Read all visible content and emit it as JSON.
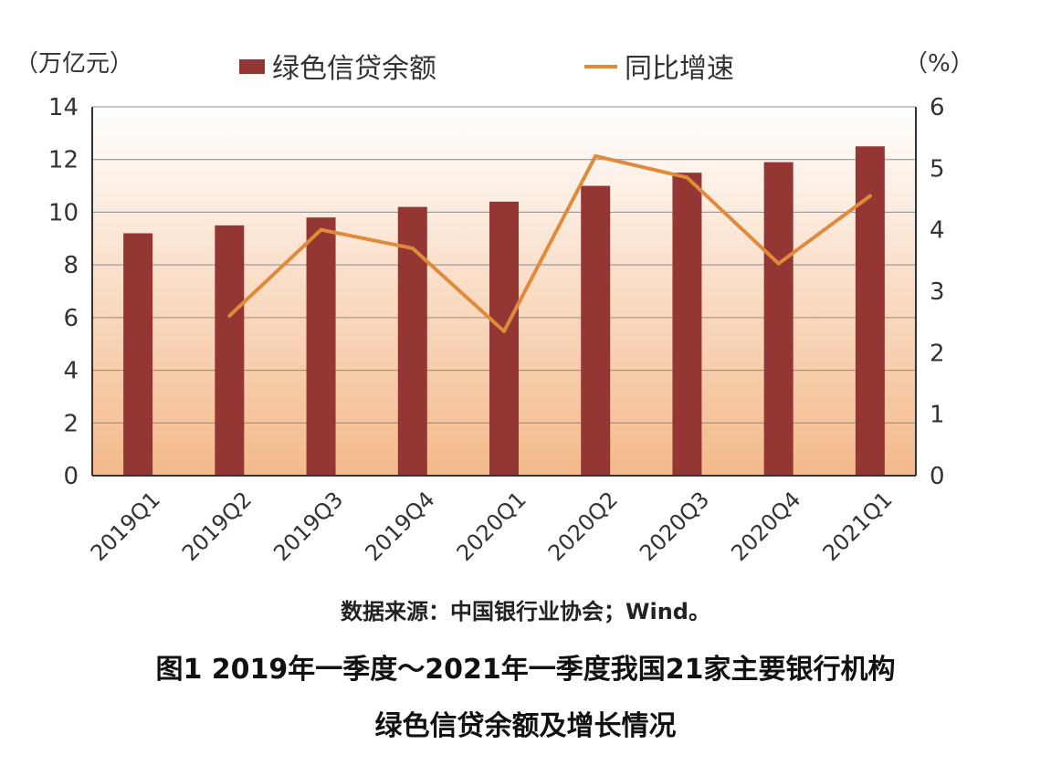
{
  "chart_data": {
    "type": "bar",
    "categories": [
      "2019Q1",
      "2019Q2",
      "2019Q3",
      "2019Q4",
      "2020Q1",
      "2020Q2",
      "2020Q3",
      "2020Q4",
      "2021Q1"
    ],
    "series": [
      {
        "name": "绿色信贷余额",
        "kind": "bar",
        "axis": "left",
        "color": "#943634",
        "values": [
          9.2,
          9.5,
          9.8,
          10.2,
          10.4,
          11.0,
          11.5,
          11.9,
          12.5
        ]
      },
      {
        "name": "同比增速",
        "kind": "line",
        "axis": "right",
        "color": "#E08A3C",
        "values": [
          null,
          2.6,
          4.0,
          3.7,
          2.35,
          5.2,
          4.85,
          3.45,
          4.55
        ]
      }
    ],
    "ylabel_left": "（万亿元）",
    "ylabel_right": "（%）",
    "ylim_left": [
      0,
      14
    ],
    "yticks_left": [
      0,
      2,
      4,
      6,
      8,
      10,
      12,
      14
    ],
    "ylim_right": [
      0,
      6
    ],
    "yticks_right": [
      0,
      1,
      2,
      3,
      4,
      5,
      6
    ],
    "legend": "top-center",
    "grid": true,
    "background_gradient": [
      "#FFFFFF",
      "#F4B98A"
    ]
  },
  "source_note": "数据来源：中国银行业协会；Wind。",
  "caption_line1": "图1  2019年一季度～2021年一季度我国21家主要银行机构",
  "caption_line2": "绿色信贷余额及增长情况"
}
